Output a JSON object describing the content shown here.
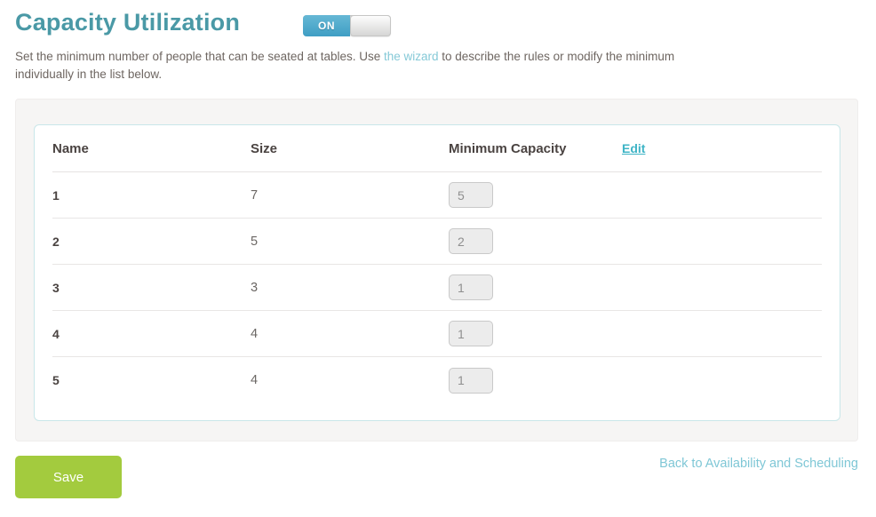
{
  "header": {
    "title": "Capacity Utilization",
    "toggle": {
      "state": "on",
      "label": "ON"
    },
    "description": {
      "before_link": "Set the minimum number of people that can be seated at tables. Use ",
      "link_text": "the wizard",
      "after_link": " to describe the rules or modify the minimum",
      "line2": "individually in the list below."
    }
  },
  "table": {
    "headers": {
      "name": "Name",
      "size": "Size",
      "min_capacity": "Minimum Capacity"
    },
    "edit_label": "Edit",
    "rows": [
      {
        "name": "1",
        "size": "7",
        "min_capacity": "5"
      },
      {
        "name": "2",
        "size": "5",
        "min_capacity": "2"
      },
      {
        "name": "3",
        "size": "3",
        "min_capacity": "1"
      },
      {
        "name": "4",
        "size": "4",
        "min_capacity": "1"
      },
      {
        "name": "5",
        "size": "4",
        "min_capacity": "1"
      }
    ]
  },
  "footer": {
    "save_label": "Save",
    "back_link_label": "Back to Availability and Scheduling"
  },
  "colors": {
    "title_teal": "#4a99a6",
    "toggle_teal": "#4aa5c8",
    "link_teal": "#85c9d7",
    "edit_link_teal": "#3eb4c6",
    "save_green": "#a3cb3e",
    "back_link_teal": "#7fc7d6"
  }
}
